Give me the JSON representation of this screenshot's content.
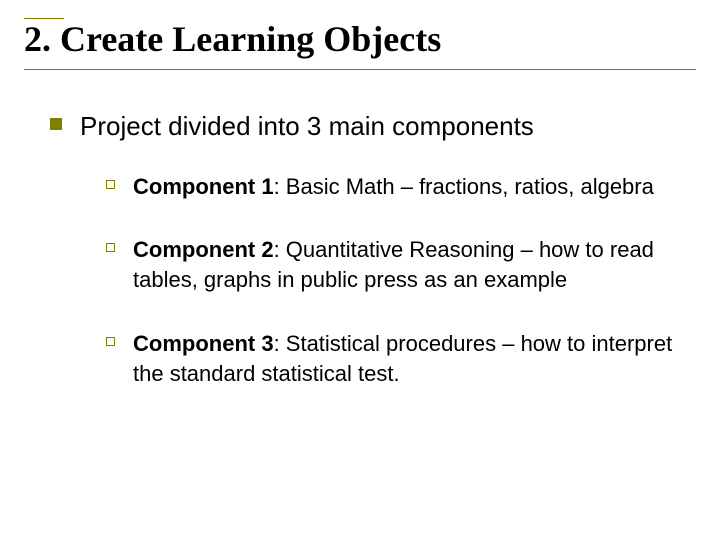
{
  "colors": {
    "accent": "#808000",
    "text": "#000000",
    "background": "#ffffff"
  },
  "title": {
    "number": "2.",
    "text": "Create Learning Objects",
    "font_family": "Times New Roman",
    "font_size_pt": 36
  },
  "level1": {
    "text": "Project divided into 3 main components",
    "font_size_pt": 26,
    "bullet_color": "#808000",
    "bullet_style": "filled-square"
  },
  "components": [
    {
      "label": "Component 1",
      "desc": ":  Basic Math – fractions, ratios, algebra"
    },
    {
      "label": "Component 2",
      "desc": ":  Quantitative Reasoning – how to read tables, graphs in public press as an example"
    },
    {
      "label": "Component 3",
      "desc": ":  Statistical procedures – how to interpret the standard statistical test."
    }
  ],
  "level2_style": {
    "font_size_pt": 22,
    "bullet_color": "#808000",
    "bullet_style": "hollow-square"
  }
}
